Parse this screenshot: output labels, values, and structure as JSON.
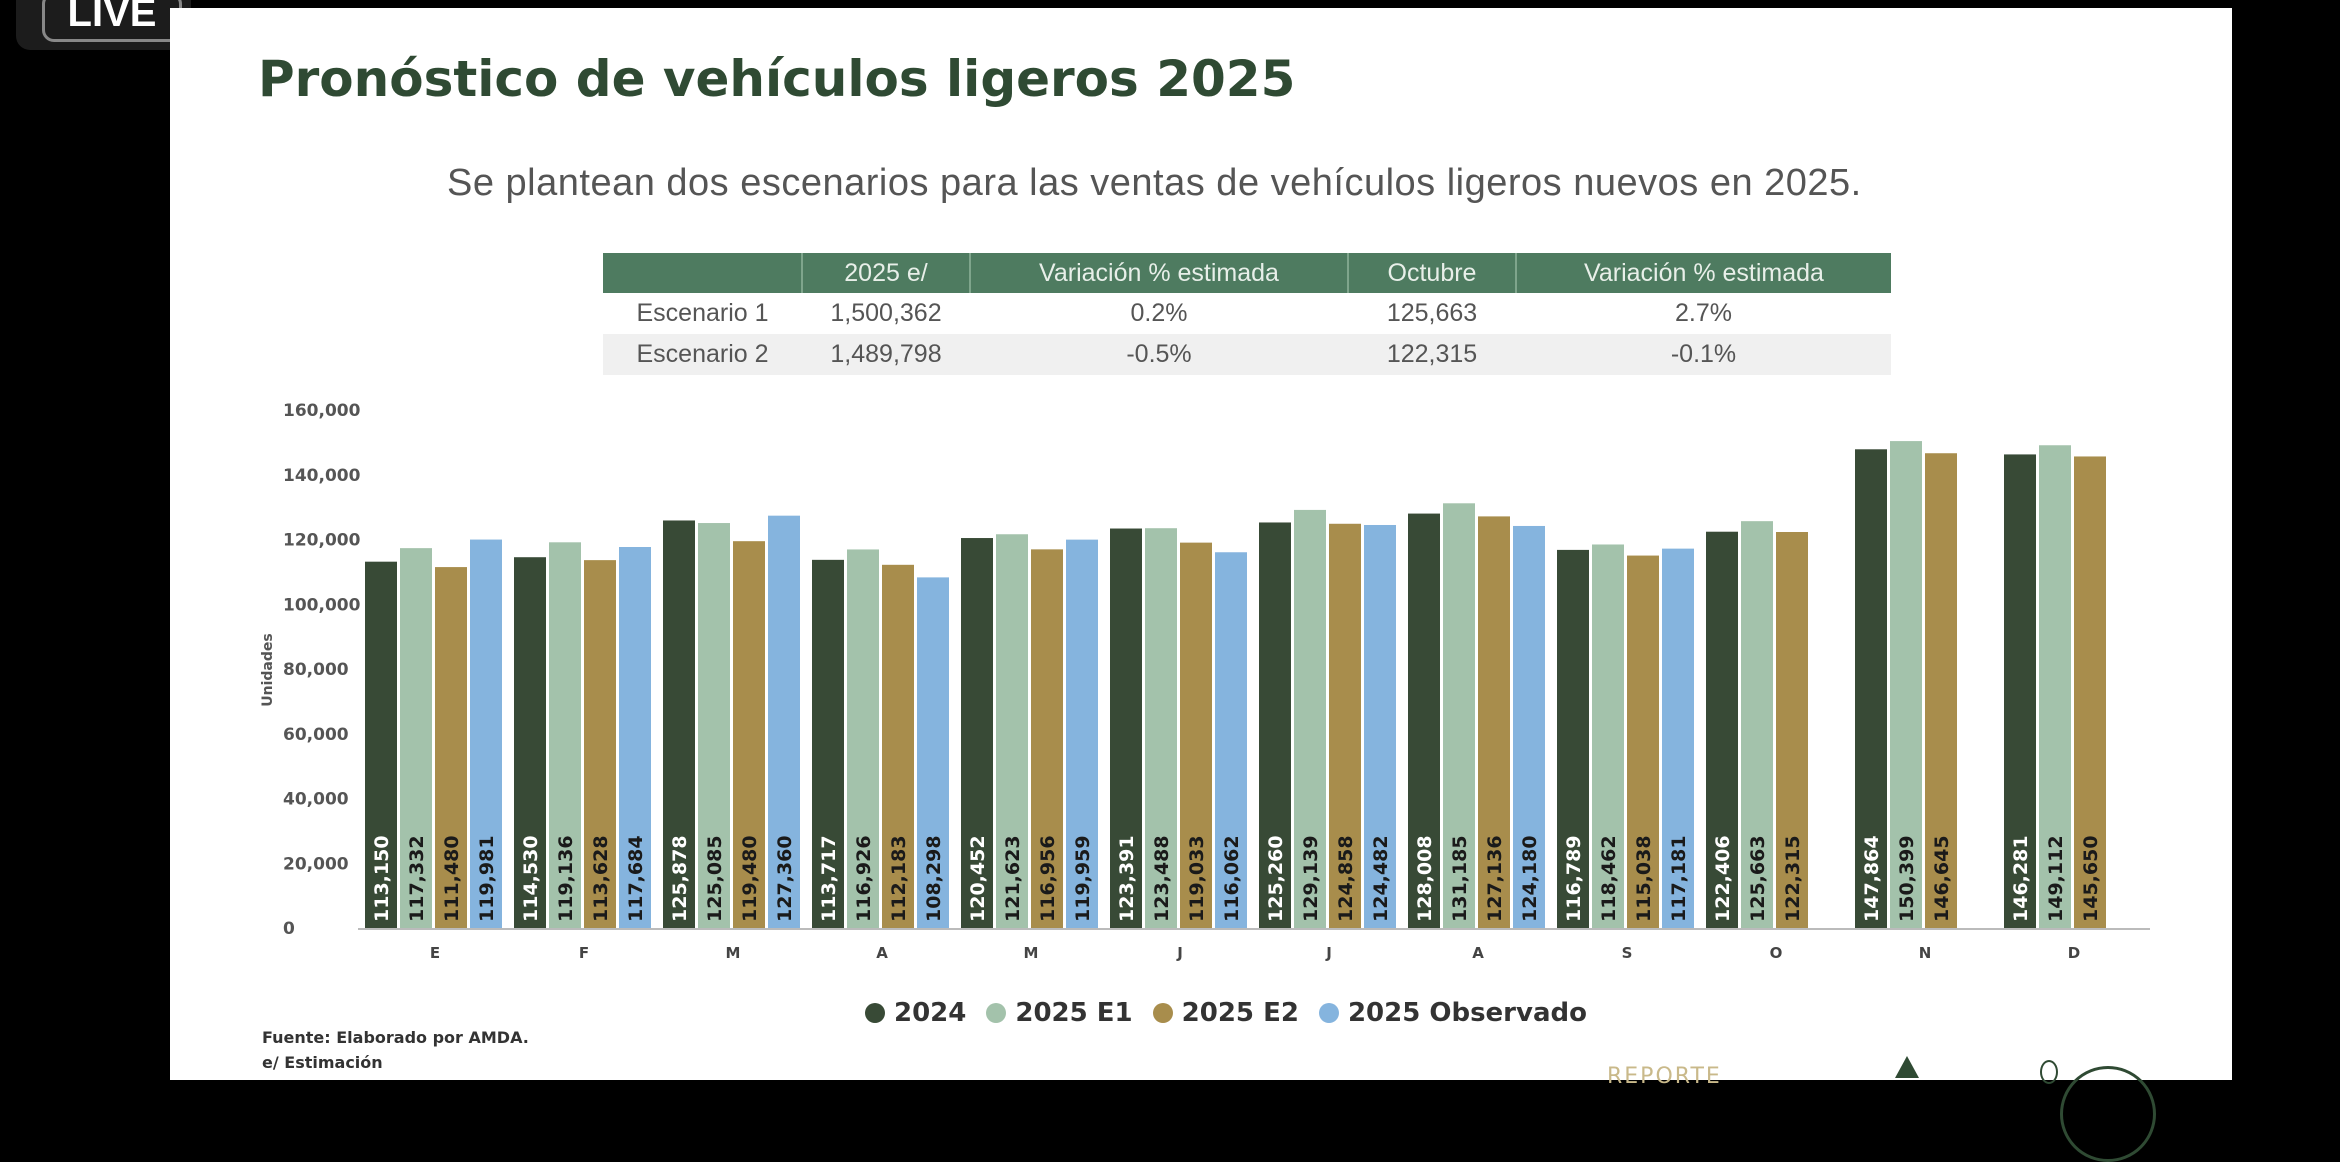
{
  "overlay": {
    "live_label": "LIVE"
  },
  "slide": {
    "title": "Pronóstico de vehículos ligeros 2025",
    "subtitle": "Se plantean dos escenarios para las ventas de vehículos ligeros nuevos en 2025.",
    "table": {
      "headers": [
        "",
        "2025 e/",
        "Variación % estimada",
        "Octubre",
        "Variación % estimada"
      ],
      "rows": [
        [
          "Escenario 1",
          "1,500,362",
          "0.2%",
          "125,663",
          "2.7%"
        ],
        [
          "Escenario 2",
          "1,489,798",
          "-0.5%",
          "122,315",
          "-0.1%"
        ]
      ]
    },
    "source": "Fuente: Elaborado por AMDA.",
    "estimation_note": "e/ Estimación",
    "footer_brand": "REPORTE"
  },
  "chart_data": {
    "type": "bar",
    "ylabel": "Unidades",
    "xlabel": "",
    "ylim": [
      0,
      160000
    ],
    "yticks": [
      "0",
      "20,000",
      "40,000",
      "60,000",
      "80,000",
      "100,000",
      "120,000",
      "140,000",
      "160,000"
    ],
    "categories": [
      "E",
      "F",
      "M",
      "A",
      "M",
      "J",
      "J",
      "A",
      "S",
      "O",
      "N",
      "D"
    ],
    "legend_position": "bottom",
    "series": [
      {
        "name": "2024",
        "color": "#384a36",
        "label_color": "#ffffff",
        "values": [
          113150,
          114530,
          125878,
          113717,
          120452,
          123391,
          125260,
          128008,
          116789,
          122406,
          147864,
          146281
        ]
      },
      {
        "name": "2025 E1",
        "color": "#a3c2ab",
        "label_color": "#1a1a1a",
        "values": [
          117332,
          119136,
          125085,
          116926,
          121623,
          123488,
          129139,
          131185,
          118462,
          125663,
          150399,
          149112
        ]
      },
      {
        "name": "2025 E2",
        "color": "#a88d4c",
        "label_color": "#1a1a1a",
        "values": [
          111480,
          113628,
          119480,
          112183,
          116956,
          119033,
          124858,
          127136,
          115038,
          122315,
          146645,
          145650
        ]
      },
      {
        "name": "2025 Observado",
        "color": "#85b4de",
        "label_color": "#1a1a1a",
        "values": [
          119981,
          117684,
          127360,
          108298,
          119959,
          116062,
          124482,
          124180,
          117181,
          null,
          null,
          null
        ]
      }
    ]
  }
}
